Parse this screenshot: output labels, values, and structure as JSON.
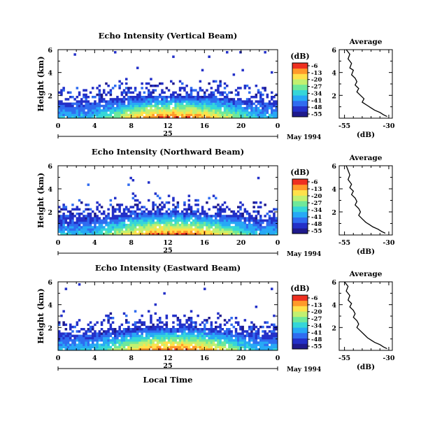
{
  "figure": {
    "xlabel_common": "Local Time",
    "colorbar_unit": "(dB)",
    "colorbar_ticks": [
      "-6",
      "-13",
      "-20",
      "-27",
      "-34",
      "-41",
      "-48",
      "-55"
    ],
    "colormap": [
      "#1f1a8c",
      "#2330c8",
      "#2f6cf0",
      "#27a9f5",
      "#35d6d8",
      "#6ee89a",
      "#c2f070",
      "#ffe14a",
      "#ff9a2a",
      "#ee3020"
    ]
  },
  "chart_data": [
    {
      "type": "heatmap",
      "title": "Echo Intensity (Vertical Beam)",
      "xlabel": "",
      "ylabel": "Height (km)",
      "x_ticks": [
        "0",
        "4",
        "8",
        "12",
        "16",
        "20",
        "0"
      ],
      "y_ticks": [
        "2",
        "4",
        "6"
      ],
      "xlim": [
        0,
        24
      ],
      "ylim": [
        0,
        6
      ],
      "date_day": "25",
      "date_label": "May 1994",
      "colorbar_unit": "(dB)",
      "colorbar_range": [
        -55,
        -6
      ]
    },
    {
      "type": "line",
      "title": "Average",
      "xlabel": "(dB)",
      "ylabel": "",
      "x_ticks": [
        "-55",
        "-30"
      ],
      "y_ticks": [
        "2",
        "4",
        "6"
      ],
      "xlim": [
        -58,
        -28
      ],
      "ylim": [
        0,
        6
      ],
      "x": [
        -54,
        -52,
        -53,
        -51,
        -52,
        -50,
        -51,
        -49,
        -48,
        -49,
        -47,
        -48,
        -46,
        -44,
        -45,
        -42,
        -40,
        -38,
        -35,
        -33,
        -31
      ],
      "y": [
        6.0,
        5.6,
        5.2,
        4.8,
        4.4,
        4.2,
        3.8,
        3.5,
        3.2,
        2.9,
        2.6,
        2.3,
        2.0,
        1.7,
        1.4,
        1.1,
        0.9,
        0.7,
        0.5,
        0.3,
        0.15
      ]
    },
    {
      "type": "heatmap",
      "title": "Echo Intensity (Northward Beam)",
      "xlabel": "",
      "ylabel": "Height (km)",
      "x_ticks": [
        "0",
        "4",
        "8",
        "12",
        "16",
        "20",
        "0"
      ],
      "y_ticks": [
        "2",
        "4",
        "6"
      ],
      "xlim": [
        0,
        24
      ],
      "ylim": [
        0,
        6
      ],
      "date_day": "25",
      "date_label": "May 1994",
      "colorbar_unit": "(dB)",
      "colorbar_range": [
        -55,
        -6
      ]
    },
    {
      "type": "line",
      "title": "Average",
      "xlabel": "(dB)",
      "ylabel": "",
      "x_ticks": [
        "-55",
        "-30"
      ],
      "y_ticks": [
        "2",
        "4",
        "6"
      ],
      "xlim": [
        -58,
        -28
      ],
      "ylim": [
        0,
        6
      ],
      "x": [
        -54,
        -53,
        -52,
        -53,
        -51,
        -52,
        -50,
        -51,
        -49,
        -48,
        -49,
        -47,
        -46,
        -47,
        -45,
        -43,
        -41,
        -39,
        -36,
        -34,
        -32
      ],
      "y": [
        6.0,
        5.6,
        5.2,
        4.8,
        4.4,
        4.1,
        3.8,
        3.5,
        3.2,
        2.9,
        2.6,
        2.3,
        2.0,
        1.7,
        1.4,
        1.1,
        0.9,
        0.7,
        0.5,
        0.3,
        0.15
      ]
    },
    {
      "type": "heatmap",
      "title": "Echo Intensity (Eastward Beam)",
      "xlabel": "Local Time",
      "ylabel": "Height (km)",
      "x_ticks": [
        "0",
        "4",
        "8",
        "12",
        "16",
        "20",
        "0"
      ],
      "y_ticks": [
        "2",
        "4",
        "6"
      ],
      "xlim": [
        0,
        24
      ],
      "ylim": [
        0,
        6
      ],
      "date_day": "25",
      "date_label": "May 1994",
      "colorbar_unit": "(dB)",
      "colorbar_range": [
        -55,
        -6
      ]
    },
    {
      "type": "line",
      "title": "Average",
      "xlabel": "(dB)",
      "ylabel": "",
      "x_ticks": [
        "-55",
        "-30"
      ],
      "y_ticks": [
        "2",
        "4",
        "6"
      ],
      "xlim": [
        -58,
        -28
      ],
      "ylim": [
        0,
        6
      ],
      "x": [
        -55,
        -53,
        -54,
        -52,
        -53,
        -51,
        -52,
        -50,
        -49,
        -50,
        -48,
        -47,
        -48,
        -46,
        -44,
        -42,
        -40,
        -38,
        -35,
        -33,
        -31
      ],
      "y": [
        6.0,
        5.6,
        5.2,
        4.8,
        4.4,
        4.1,
        3.8,
        3.5,
        3.2,
        2.9,
        2.6,
        2.3,
        2.0,
        1.7,
        1.4,
        1.1,
        0.9,
        0.7,
        0.5,
        0.3,
        0.15
      ]
    }
  ]
}
